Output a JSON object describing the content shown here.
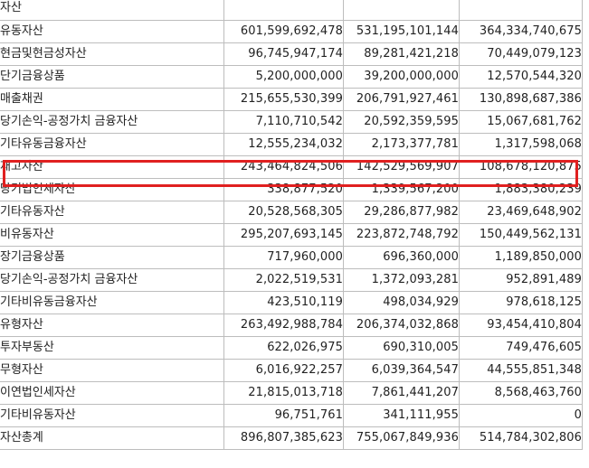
{
  "header": {
    "label": "자산",
    "values": [
      "",
      "",
      ""
    ]
  },
  "rows": [
    {
      "label": "유동자산",
      "level": 1,
      "values": [
        "601,599,692,478",
        "531,195,101,144",
        "364,334,740,675"
      ]
    },
    {
      "label": "현금및현금성자산",
      "level": 2,
      "values": [
        "96,745,947,174",
        "89,281,421,218",
        "70,449,079,123"
      ]
    },
    {
      "label": "단기금융상품",
      "level": 2,
      "values": [
        "5,200,000,000",
        "39,200,000,000",
        "12,570,544,320"
      ]
    },
    {
      "label": "매출채권",
      "level": 2,
      "values": [
        "215,655,530,399",
        "206,791,927,461",
        "130,898,687,386"
      ]
    },
    {
      "label": "당기손익-공정가치 금융자산",
      "level": 2,
      "values": [
        "7,110,710,542",
        "20,592,359,595",
        "15,067,681,762"
      ]
    },
    {
      "label": "기타유동금융자산",
      "level": 2,
      "values": [
        "12,555,234,032",
        "2,173,377,781",
        "1,317,598,068"
      ]
    },
    {
      "label": "재고자산",
      "level": 2,
      "highlight": true,
      "values": [
        "243,464,824,506",
        "142,529,569,907",
        "108,678,120,875"
      ]
    },
    {
      "label": "당기법인세자산",
      "level": 2,
      "values": [
        "338,877,520",
        "1,339,567,200",
        "1,883,380,239"
      ]
    },
    {
      "label": "기타유동자산",
      "level": 2,
      "values": [
        "20,528,568,305",
        "29,286,877,982",
        "23,469,648,902"
      ]
    },
    {
      "label": "비유동자산",
      "level": 1,
      "values": [
        "295,207,693,145",
        "223,872,748,792",
        "150,449,562,131"
      ]
    },
    {
      "label": "장기금융상품",
      "level": 2,
      "values": [
        "717,960,000",
        "696,360,000",
        "1,189,850,000"
      ]
    },
    {
      "label": "당기손익-공정가치 금융자산",
      "level": 2,
      "values": [
        "2,022,519,531",
        "1,372,093,281",
        "952,891,489"
      ]
    },
    {
      "label": "기타비유동금융자산",
      "level": 2,
      "values": [
        "423,510,119",
        "498,034,929",
        "978,618,125"
      ]
    },
    {
      "label": "유형자산",
      "level": 2,
      "values": [
        "263,492,988,784",
        "206,374,032,868",
        "93,454,410,804"
      ]
    },
    {
      "label": "투자부동산",
      "level": 2,
      "values": [
        "622,026,975",
        "690,310,005",
        "749,476,605"
      ]
    },
    {
      "label": "무형자산",
      "level": 2,
      "values": [
        "6,016,922,257",
        "6,039,364,547",
        "44,555,851,348"
      ]
    },
    {
      "label": "이연법인세자산",
      "level": 2,
      "values": [
        "21,815,013,718",
        "7,861,441,207",
        "8,568,463,760"
      ]
    },
    {
      "label": "기타비유동자산",
      "level": 2,
      "values": [
        "96,751,761",
        "341,111,955",
        "0"
      ]
    },
    {
      "label": "자산총계",
      "level": 1,
      "values": [
        "896,807,385,623",
        "755,067,849,936",
        "514,784,302,806"
      ]
    }
  ],
  "highlight_color": "#e02020"
}
